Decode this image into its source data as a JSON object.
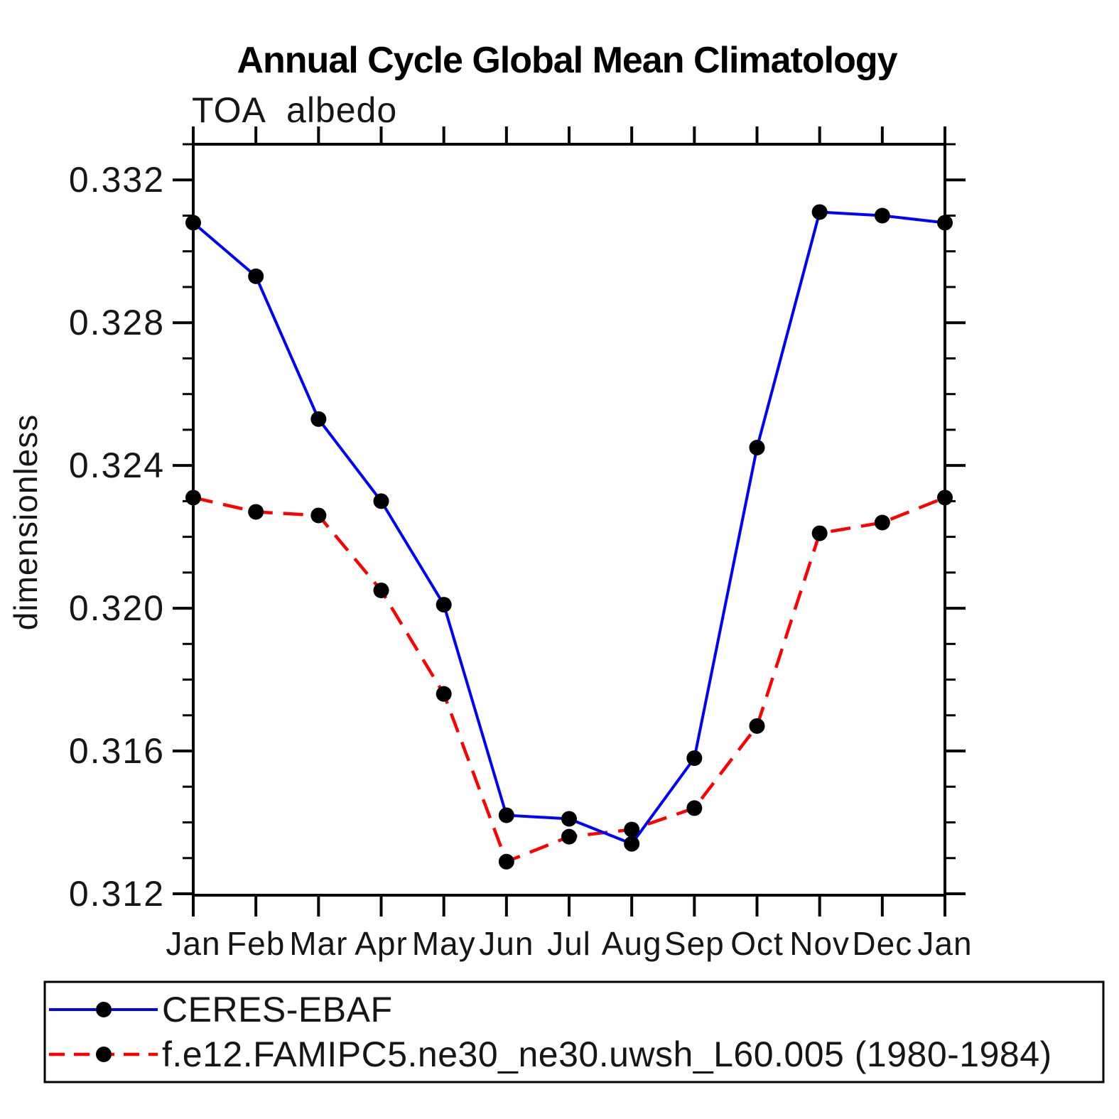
{
  "title": "Annual Cycle Global Mean Climatology",
  "subtitle": "TOA albedo",
  "y_axis_label": "dimensionless",
  "chart_data": {
    "type": "line",
    "x_tick_labels": [
      "Jan",
      "Feb",
      "Mar",
      "Apr",
      "May",
      "Jun",
      "Jul",
      "Aug",
      "Sep",
      "Oct",
      "Nov",
      "Dec",
      "Jan"
    ],
    "series": [
      {
        "name": "CERES-EBAF",
        "color": "#0000ff",
        "line_style": "solid",
        "line_width": 4,
        "marker": "circle",
        "marker_color": "#000000",
        "values": [
          0.3308,
          0.3293,
          0.3253,
          0.323,
          0.3201,
          0.3142,
          0.3141,
          0.3134,
          0.3158,
          0.3245,
          0.3311,
          0.331,
          0.3308
        ]
      },
      {
        "name": "f.e12.FAMIPC5.ne30_ne30.uwsh_L60.005 (1980-1984)",
        "color": "#ff0000",
        "line_style": "dashed",
        "line_width": 4.5,
        "marker": "circle",
        "marker_color": "#000000",
        "values": [
          0.3231,
          0.3227,
          0.3226,
          0.3205,
          0.3176,
          0.3129,
          0.3136,
          0.3138,
          0.3144,
          0.3167,
          0.3221,
          0.3224,
          0.3231
        ]
      }
    ],
    "ylim": [
      0.31196,
      0.333
    ],
    "y_ticks_major": {
      "start": 0.312,
      "step": 0.004,
      "count": 6,
      "labels": [
        "0.312",
        "0.316",
        "0.320",
        "0.324",
        "0.328",
        "0.332"
      ]
    },
    "y_minor_step": 0.001,
    "grid": false,
    "legend_position": "bottom-left-box",
    "axis_color": "#000000"
  }
}
